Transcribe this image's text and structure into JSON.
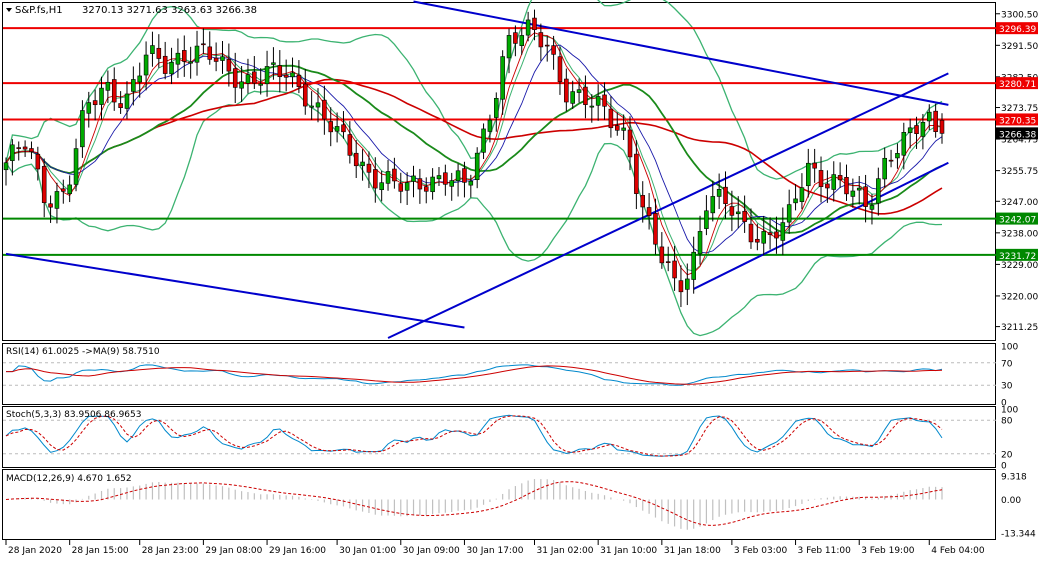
{
  "header": {
    "symbol_label": "S&P.fs,H1",
    "ohlc_label": "3270.13 3271.63 3263.63 3266.38"
  },
  "indicators": {
    "rsi_label": "RSI(14) 61.0025  ->MA(9) 58.7510",
    "stoch_label": "Stoch(5,3,3) 83.9506 86.9653",
    "macd_label": "MACD(12,26,9) 4.670 1.652"
  },
  "colors": {
    "bull": "#00aa00",
    "bear": "#dd0000",
    "bollinger": "#3cb371",
    "ma_slow": "#cc0000",
    "ma_mid": "#1a8a1a",
    "ma_fast": "#1a1aaa",
    "trendline": "#0000cc",
    "resistance": "#ee0000",
    "support": "#008800",
    "rsi": "#0088cc",
    "rsi_ma": "#cc0000",
    "stoch_main": "#0088cc",
    "stoch_signal": "#cc0000",
    "macd_hist": "#c0c0c0",
    "macd_signal": "#cc0000"
  },
  "chart_data": [
    {
      "type": "candlestick",
      "symbol": "S&P.fs",
      "timeframe": "H1",
      "ylim": [
        3208,
        3303
      ],
      "y_ticks": [
        "3300.50",
        "3291.50",
        "3282.50",
        "3273.75",
        "3264.75",
        "3255.75",
        "3247.00",
        "3238.00",
        "3229.00",
        "3220.00",
        "3211.25"
      ],
      "x_ticks": [
        "28 Jan 2020",
        "28 Jan 15:00",
        "28 Jan 23:00",
        "29 Jan 08:00",
        "29 Jan 16:00",
        "30 Jan 01:00",
        "30 Jan 09:00",
        "30 Jan 17:00",
        "31 Jan 02:00",
        "31 Jan 10:00",
        "31 Jan 18:00",
        "3 Feb 03:00",
        "3 Feb 11:00",
        "3 Feb 19:00",
        "4 Feb 04:00"
      ],
      "price_levels": [
        {
          "label": "3296.39",
          "value": 3296.39,
          "kind": "resistance"
        },
        {
          "label": "3280.71",
          "value": 3280.71,
          "kind": "resistance"
        },
        {
          "label": "3270.35",
          "value": 3270.35,
          "kind": "resistance"
        },
        {
          "label": "3266.38",
          "value": 3266.38,
          "kind": "current"
        },
        {
          "label": "3242.07",
          "value": 3242.07,
          "kind": "support"
        },
        {
          "label": "3231.72",
          "value": 3231.72,
          "kind": "support"
        }
      ]
    },
    {
      "type": "line",
      "name": "RSI(14)",
      "ylim": [
        0,
        100
      ],
      "y_ticks": [
        "100",
        "70",
        "30",
        "0"
      ]
    },
    {
      "type": "line",
      "name": "Stoch(5,3,3)",
      "ylim": [
        0,
        100
      ],
      "y_ticks": [
        "100",
        "80",
        "20",
        "0"
      ]
    },
    {
      "type": "bar",
      "name": "MACD(12,26,9)",
      "ylim": [
        -15,
        11
      ],
      "y_ticks": [
        "9.318",
        "0.00",
        "-13.344"
      ]
    }
  ]
}
